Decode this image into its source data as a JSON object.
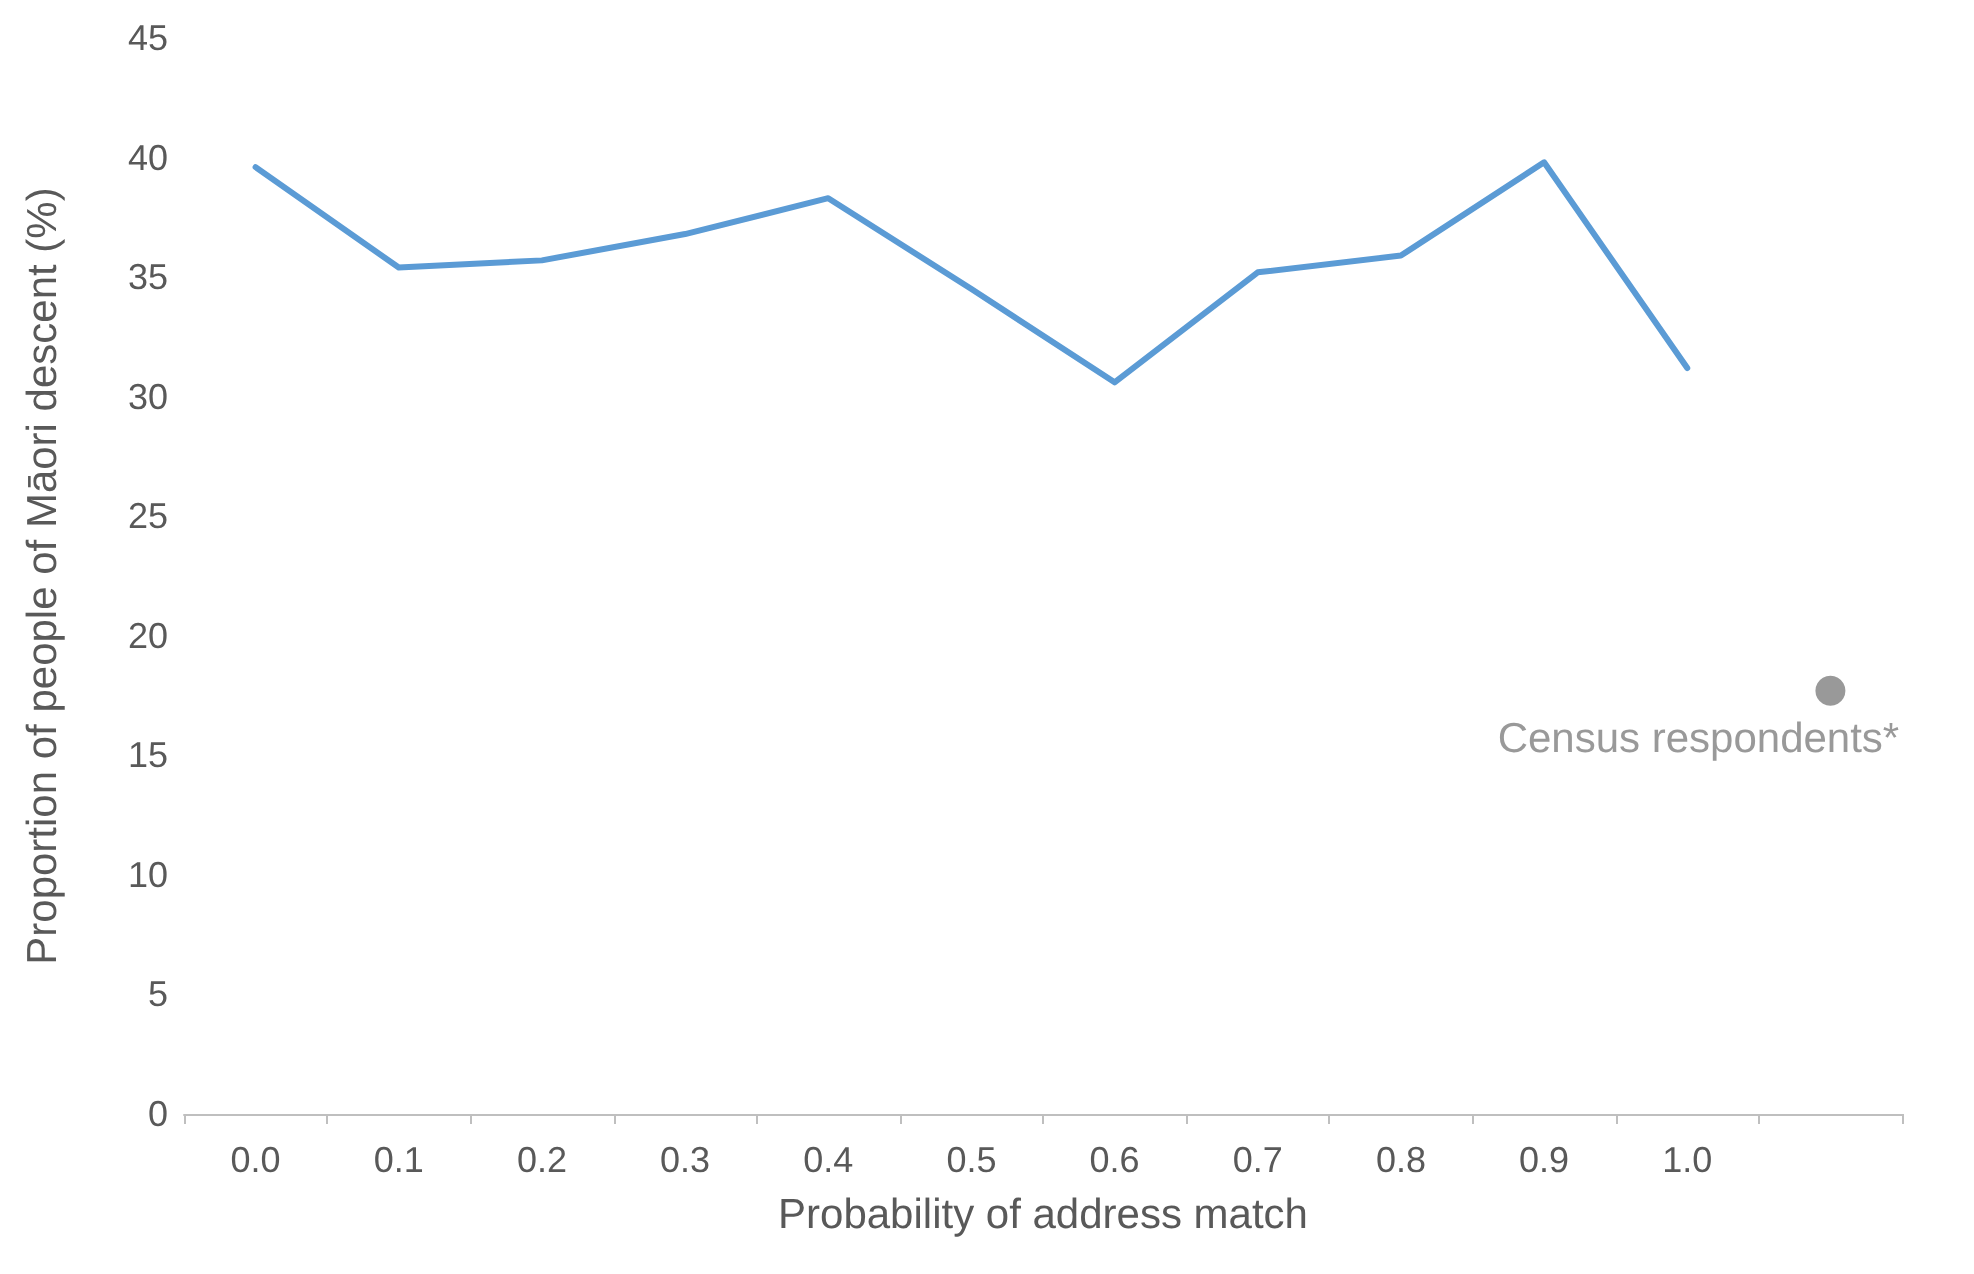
{
  "chart_data": {
    "type": "line",
    "xlabel": "Probability of address match",
    "ylabel": "Proportion of people of Māori descent (%)",
    "categories": [
      "0.0",
      "0.1",
      "0.2",
      "0.3",
      "0.4",
      "0.5",
      "0.6",
      "0.7",
      "0.8",
      "0.9",
      "1.0",
      null
    ],
    "series": [
      {
        "color": "#5b9bd5",
        "marker": "none",
        "values": [
          39.6,
          35.4,
          35.7,
          36.8,
          38.3,
          34.5,
          30.6,
          35.2,
          35.9,
          39.8,
          31.2,
          null
        ]
      },
      {
        "name": "Census respondents*",
        "type": "scatter",
        "marker": "circle",
        "color": "#7f7f7f",
        "values": [
          null,
          null,
          null,
          null,
          null,
          null,
          null,
          null,
          null,
          null,
          null,
          17.7
        ]
      }
    ],
    "ylim": [
      0,
      45
    ],
    "yticks": [
      0,
      5,
      10,
      15,
      20,
      25,
      30,
      35,
      40,
      45
    ],
    "grid": false,
    "legend": false
  }
}
